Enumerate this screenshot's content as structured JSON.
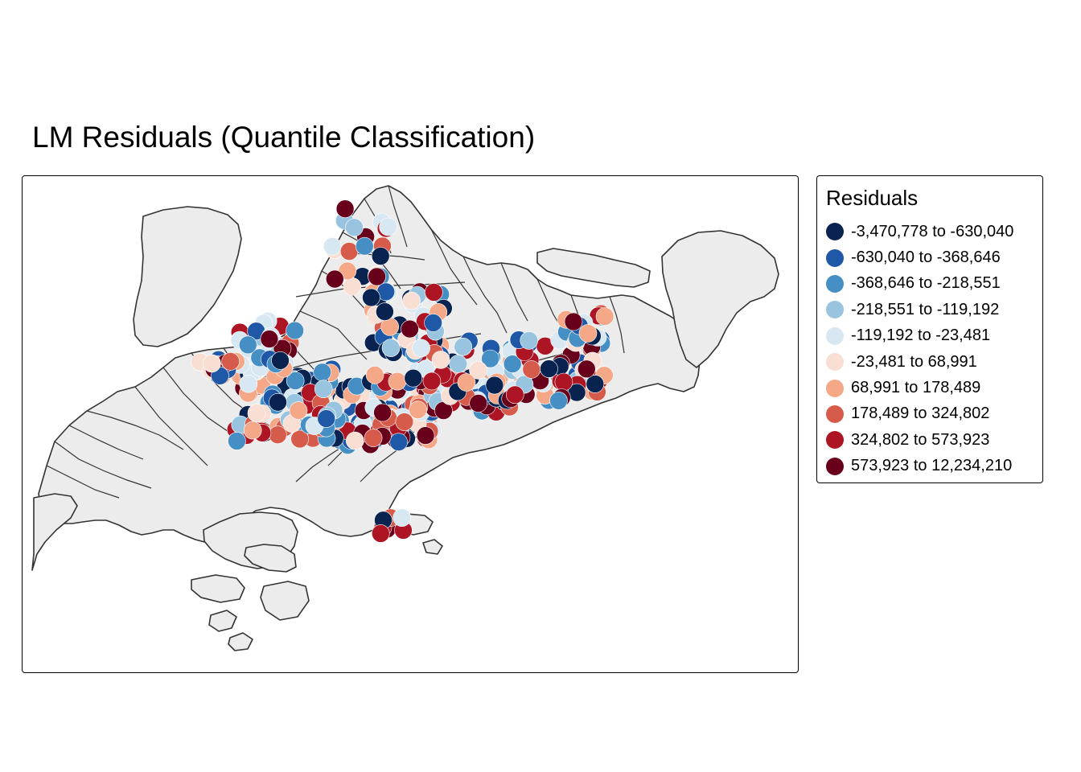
{
  "title": "LM Residuals (Quantile Classification)",
  "legend": {
    "title": "Residuals",
    "classes": [
      {
        "label": "-3,470,778 to -630,040",
        "color": "#08234f"
      },
      {
        "label": "-630,040 to -368,646",
        "color": "#1f58a6"
      },
      {
        "label": "-368,646 to -218,551",
        "color": "#468fc4"
      },
      {
        "label": "-218,551 to -119,192",
        "color": "#99c4df"
      },
      {
        "label": "-119,192 to -23,481",
        "color": "#d8e8f2"
      },
      {
        "label": "-23,481 to 68,991",
        "color": "#f8ded3"
      },
      {
        "label": "68,991 to 178,489",
        "color": "#f4a887"
      },
      {
        "label": "178,489 to 324,802",
        "color": "#d65b4a"
      },
      {
        "label": "324,802 to 573,923",
        "color": "#ae1524"
      },
      {
        "label": "573,923 to 12,234,210",
        "color": "#68001b"
      }
    ]
  },
  "map": {
    "land_fill": "#ececec",
    "boundary_color": "#333333"
  }
}
